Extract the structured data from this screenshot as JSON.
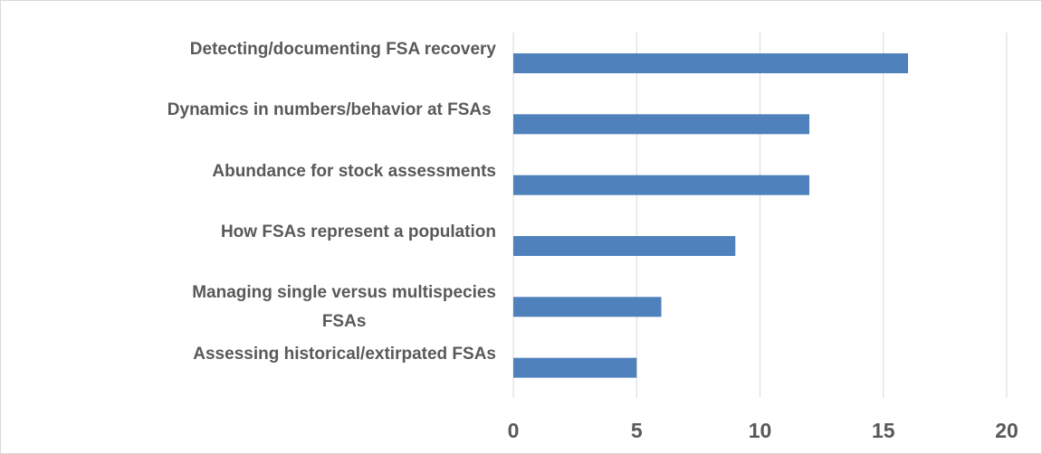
{
  "chart_data": {
    "type": "bar",
    "orientation": "horizontal",
    "categories": [
      "Detecting/documenting FSA recovery",
      "Dynamics in numbers/behavior at FSAs ",
      "Abundance for stock assessments",
      "How FSAs represent a population",
      "Managing single versus multispecies\nFSAs",
      "Assessing historical/extirpated FSAs"
    ],
    "values": [
      16,
      12,
      12,
      9,
      6,
      5
    ],
    "color": "#4f81bd",
    "xlim": [
      0,
      20
    ],
    "xticks": [
      0,
      5,
      10,
      15,
      20
    ],
    "grid": true
  }
}
